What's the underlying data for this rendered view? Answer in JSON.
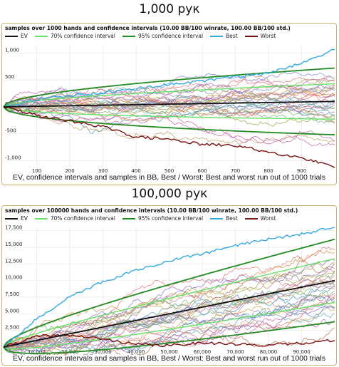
{
  "headings": [
    "1,000 рук",
    "100,000 рук"
  ],
  "colors": {
    "ev": "#111111",
    "ci70": "#66e066",
    "ci95": "#228b22",
    "best": "#33aadd",
    "worst": "#7a1010",
    "panel_border": "#c9b06a",
    "grid": "#e6e6e6"
  },
  "chart_data": [
    {
      "type": "line",
      "title": "samples over 1000 hands and confidence intervals (10.00 BB/100 winrate, 100.00 BB/100 std.)",
      "caption": "EV, confidence intervals and samples in BB, Best / Worst: Best and worst run out of 1000 trials",
      "legend": [
        "EV",
        "70% confidence interval",
        "95% confidence interval",
        "Best",
        "Worst"
      ],
      "legend_position": "top",
      "hands": 1000,
      "winrate_bb_per_100": 10,
      "std_bb_per_100": 100,
      "xlim": [
        0,
        1000
      ],
      "ylim": [
        -1100,
        1150
      ],
      "x_ticks": [
        100,
        200,
        300,
        400,
        500,
        600,
        700,
        800,
        900
      ],
      "x_tick_labels": [
        "100",
        "200",
        "300",
        "400",
        "500",
        "600",
        "700",
        "800",
        "900"
      ],
      "y_ticks": [
        1000,
        500,
        0,
        -500,
        -1000
      ],
      "y_tick_labels": [
        "1,000",
        "500",
        "0",
        "-500",
        "-1,000"
      ],
      "grid": true,
      "series": [
        {
          "name": "Best",
          "x": [
            0,
            100,
            200,
            300,
            400,
            500,
            600,
            700,
            800,
            900,
            1000
          ],
          "values": [
            0,
            140,
            210,
            260,
            330,
            420,
            480,
            560,
            620,
            820,
            1060
          ]
        },
        {
          "name": "Worst",
          "x": [
            0,
            100,
            200,
            300,
            400,
            500,
            600,
            700,
            800,
            900,
            1000
          ],
          "values": [
            0,
            -160,
            -260,
            -370,
            -560,
            -600,
            -700,
            -720,
            -840,
            -940,
            -1130
          ]
        }
      ],
      "sample_count_other": 30
    },
    {
      "type": "line",
      "title": "samples over 100000 hands and confidence intervals (10.00 BB/100 winrate, 100.00 BB/100 std.)",
      "caption": "EV, confidence intervals and samples in BB, Best / Worst: Best and worst run out of 1000 trials",
      "legend": [
        "EV",
        "70% confidence interval",
        "95% confidence interval",
        "Best",
        "Worst"
      ],
      "legend_position": "top",
      "hands": 100000,
      "winrate_bb_per_100": 10,
      "std_bb_per_100": 100,
      "xlim": [
        0,
        100000
      ],
      "ylim": [
        0,
        18000
      ],
      "x_ticks": [
        10000,
        20000,
        30000,
        40000,
        50000,
        60000,
        70000,
        80000,
        90000
      ],
      "x_tick_labels": [
        "10,000",
        "20,000",
        "30,000",
        "40,000",
        "50,000",
        "60,000",
        "70,000",
        "80,000",
        "90,000"
      ],
      "y_ticks": [
        17500,
        15000,
        12500,
        10000,
        7500,
        5000,
        2500
      ],
      "y_tick_labels": [
        "17,500",
        "15,000",
        "12,500",
        "10,000",
        "7,500",
        "5,000",
        "2,500"
      ],
      "grid": true,
      "series": [
        {
          "name": "Best",
          "x": [
            0,
            10000,
            20000,
            30000,
            40000,
            50000,
            60000,
            70000,
            80000,
            90000,
            100000
          ],
          "values": [
            0,
            4200,
            7500,
            9800,
            11500,
            13000,
            14000,
            15300,
            16200,
            17000,
            18000
          ]
        },
        {
          "name": "Worst",
          "x": [
            0,
            10000,
            20000,
            30000,
            40000,
            50000,
            60000,
            70000,
            80000,
            90000,
            100000
          ],
          "values": [
            0,
            1600,
            1800,
            1200,
            400,
            200,
            700,
            400,
            300,
            600,
            1000
          ]
        }
      ],
      "sample_count_other": 30
    }
  ]
}
